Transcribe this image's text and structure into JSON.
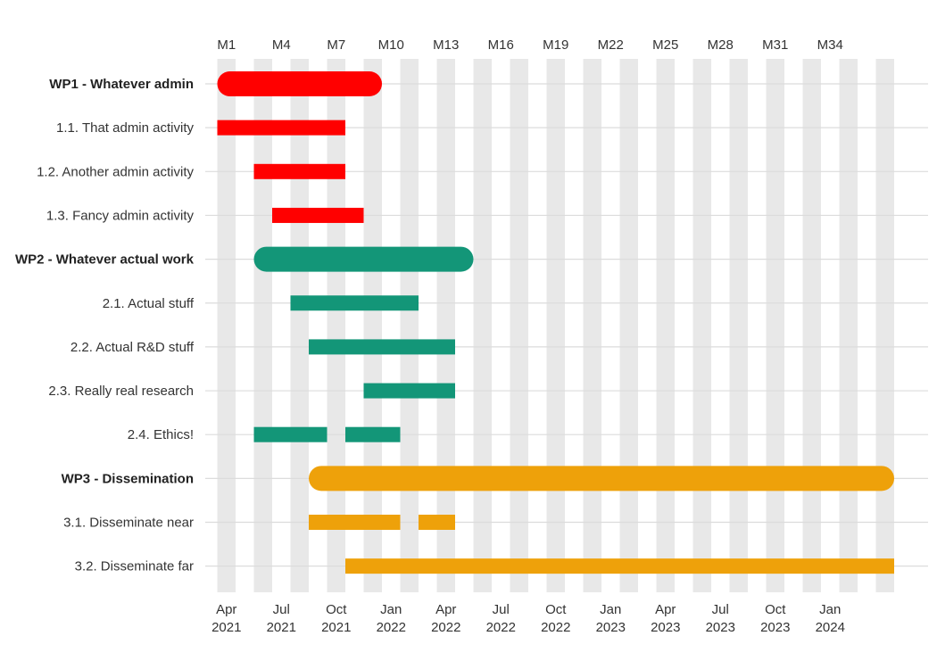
{
  "chart_data": {
    "type": "gantt",
    "x_axis_bottom": {
      "ticks": [
        {
          "month": 1,
          "line1": "Apr",
          "line2": "2021"
        },
        {
          "month": 4,
          "line1": "Jul",
          "line2": "2021"
        },
        {
          "month": 7,
          "line1": "Oct",
          "line2": "2021"
        },
        {
          "month": 10,
          "line1": "Jan",
          "line2": "2022"
        },
        {
          "month": 13,
          "line1": "Apr",
          "line2": "2022"
        },
        {
          "month": 16,
          "line1": "Jul",
          "line2": "2022"
        },
        {
          "month": 19,
          "line1": "Oct",
          "line2": "2022"
        },
        {
          "month": 22,
          "line1": "Jan",
          "line2": "2023"
        },
        {
          "month": 25,
          "line1": "Apr",
          "line2": "2023"
        },
        {
          "month": 28,
          "line1": "Jul",
          "line2": "2023"
        },
        {
          "month": 31,
          "line1": "Oct",
          "line2": "2023"
        },
        {
          "month": 34,
          "line1": "Jan",
          "line2": "2024"
        }
      ]
    },
    "x_axis_top": {
      "ticks": [
        {
          "month": 1,
          "label": "M1"
        },
        {
          "month": 4,
          "label": "M4"
        },
        {
          "month": 7,
          "label": "M7"
        },
        {
          "month": 10,
          "label": "M10"
        },
        {
          "month": 13,
          "label": "M13"
        },
        {
          "month": 16,
          "label": "M16"
        },
        {
          "month": 19,
          "label": "M19"
        },
        {
          "month": 22,
          "label": "M22"
        },
        {
          "month": 25,
          "label": "M25"
        },
        {
          "month": 28,
          "label": "M28"
        },
        {
          "month": 31,
          "label": "M31"
        },
        {
          "month": 34,
          "label": "M34"
        }
      ]
    },
    "x_range_months": [
      0,
      37.7
    ],
    "month_shading": "alternating grey bands per month",
    "colors": {
      "WP1": "#ff0000",
      "WP2": "#139678",
      "WP3": "#eea10a"
    },
    "rows": [
      {
        "label": "WP1 - Whatever admin",
        "wp": "WP1",
        "kind": "workpackage",
        "segments": [
          [
            1,
            9
          ]
        ]
      },
      {
        "label": "1.1. That admin activity",
        "wp": "WP1",
        "kind": "task",
        "segments": [
          [
            1,
            7
          ]
        ]
      },
      {
        "label": "1.2. Another admin activity",
        "wp": "WP1",
        "kind": "task",
        "segments": [
          [
            3,
            7
          ]
        ]
      },
      {
        "label": "1.3. Fancy admin activity",
        "wp": "WP1",
        "kind": "task",
        "segments": [
          [
            4,
            8
          ]
        ]
      },
      {
        "label": "WP2 - Whatever actual work",
        "wp": "WP2",
        "kind": "workpackage",
        "segments": [
          [
            3,
            14
          ]
        ]
      },
      {
        "label": "2.1. Actual stuff",
        "wp": "WP2",
        "kind": "task",
        "segments": [
          [
            5,
            11
          ]
        ]
      },
      {
        "label": "2.2. Actual R&D stuff",
        "wp": "WP2",
        "kind": "task",
        "segments": [
          [
            6,
            13
          ]
        ]
      },
      {
        "label": "2.3. Really real research",
        "wp": "WP2",
        "kind": "task",
        "segments": [
          [
            9,
            13
          ]
        ]
      },
      {
        "label": "2.4. Ethics!",
        "wp": "WP2",
        "kind": "task",
        "segments": [
          [
            3,
            6
          ],
          [
            8,
            10
          ]
        ]
      },
      {
        "label": "WP3 - Dissemination",
        "wp": "WP3",
        "kind": "workpackage",
        "segments": [
          [
            6,
            37
          ]
        ]
      },
      {
        "label": "3.1. Disseminate near",
        "wp": "WP3",
        "kind": "task",
        "segments": [
          [
            6,
            10
          ],
          [
            12,
            13
          ]
        ]
      },
      {
        "label": "3.2. Disseminate far",
        "wp": "WP3",
        "kind": "task",
        "segments": [
          [
            8,
            37
          ]
        ]
      }
    ]
  }
}
